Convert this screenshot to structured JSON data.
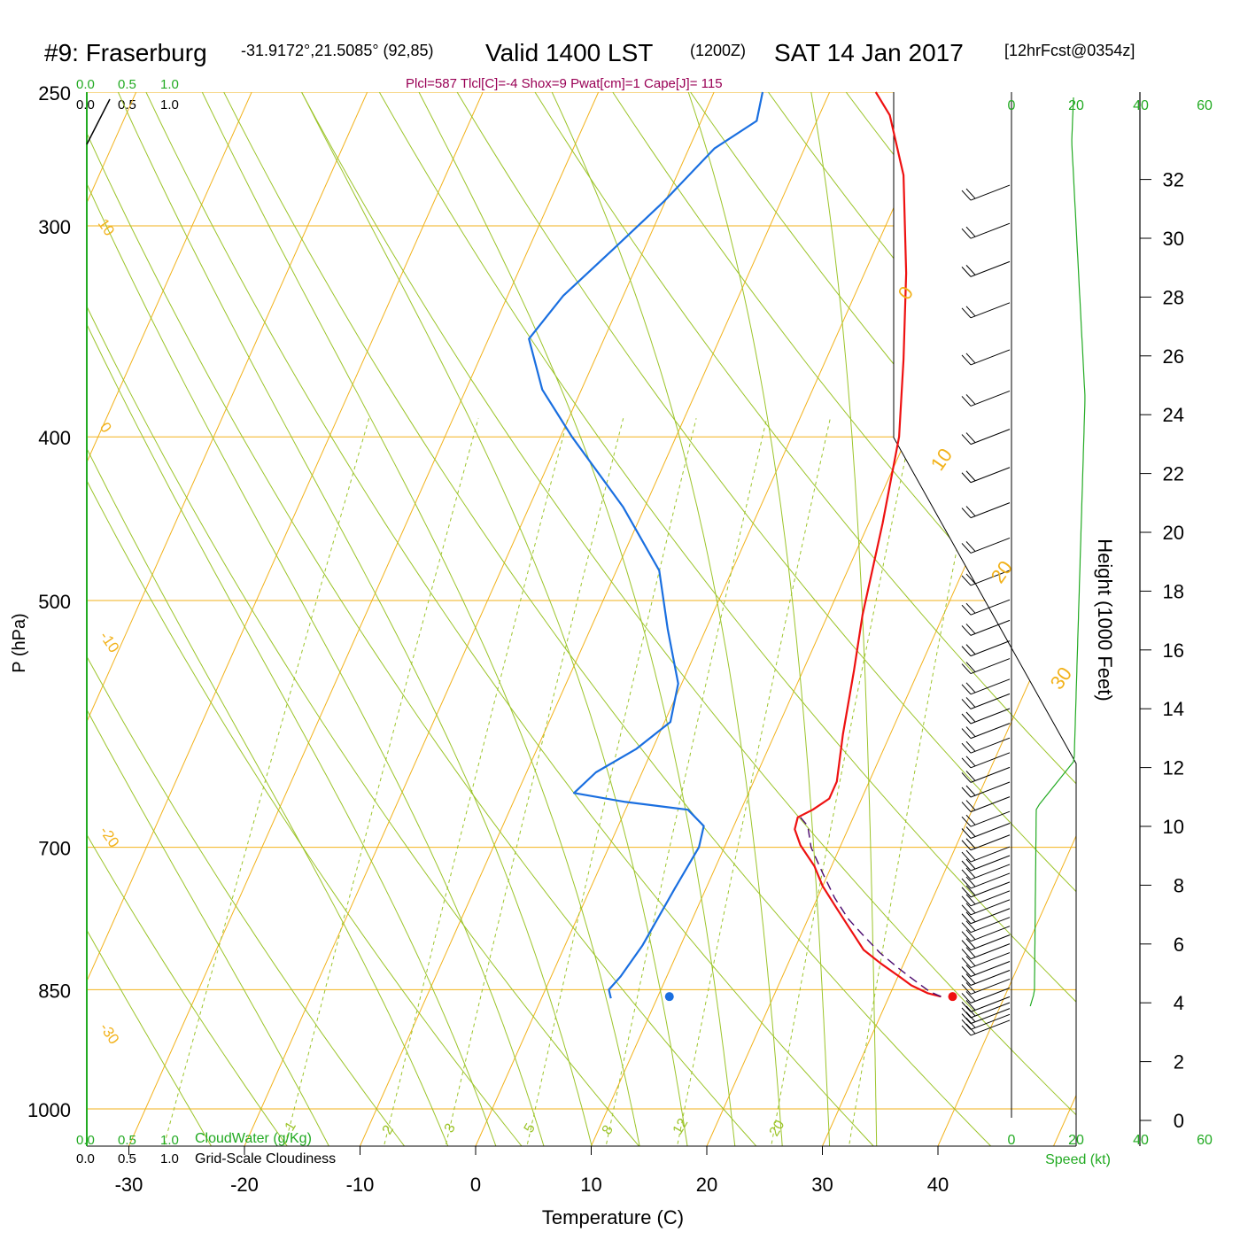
{
  "header": {
    "station": "#9: Fraserburg",
    "coords": "-31.9172°,21.5085° (92,85)",
    "valid": "Valid 1400 LST",
    "utc": "(1200Z)",
    "date": "SAT 14 Jan 2017",
    "forecast": "[12hrFcst@0354z]",
    "indices": "Plcl=587 Tlcl[C]=-4 Shox=9 Pwat[cm]=1 Cape[J]= 115"
  },
  "scale_bars": {
    "top_green": [
      "0.0",
      "0.5",
      "1.0"
    ],
    "top_black": [
      "0.0",
      "0.5",
      "1.0"
    ],
    "bottom_green": [
      "0.0",
      "0.5",
      "1.0"
    ],
    "bottom_green_label": "CloudWater (g/Kg)",
    "bottom_black": [
      "0.0",
      "0.5",
      "1.0"
    ],
    "bottom_black_label": "Grid-Scale Cloudiness"
  },
  "colors": {
    "temperature": "#ee1111",
    "dewpoint": "#1a6fe0",
    "parcel": "#4b0a6e",
    "isotherm": "#f2b21b",
    "dry_adiabat": "#9cc42a",
    "moist_adiabat": "#9cc42a",
    "mixing_ratio": "#9cc42a",
    "speed": "#22aa22",
    "indices": "#990055"
  },
  "chart_data": {
    "type": "line",
    "title": "#9: Fraserburg -31.9172°,21.5085° (92,85) Valid 1400 LST (1200Z) SAT 14 Jan 2017 [12hrFcst@0354z]",
    "xlabel": "Temperature (C)",
    "ylabel": "P (hPa)",
    "right_label": "Height (1000 Feet)",
    "speed_label": "Speed (kt)",
    "x_ticks": [
      "-30",
      "-20",
      "-10",
      "0",
      "10",
      "20",
      "30",
      "40"
    ],
    "p_ticks": [
      250,
      300,
      400,
      500,
      700,
      850,
      1000
    ],
    "height_ticks": [
      "0",
      "2",
      "4",
      "6",
      "8",
      "10",
      "12",
      "14",
      "16",
      "18",
      "20",
      "22",
      "24",
      "26",
      "28",
      "30",
      "32"
    ],
    "speed_ticks": [
      "0",
      "20",
      "40",
      "60"
    ],
    "isotherm_labels": [
      "10",
      "0",
      "-10",
      "-20",
      "-30",
      "0",
      "10",
      "20",
      "30"
    ],
    "mixing_ratio_labels": [
      "1",
      "2",
      "3",
      "5",
      "8",
      "12",
      "20"
    ],
    "series": [
      {
        "id": "temperature",
        "points": [
          [
            34.5,
            858
          ],
          [
            33.2,
            854
          ],
          [
            31.5,
            845
          ],
          [
            30.0,
            834
          ],
          [
            28.0,
            820
          ],
          [
            26.0,
            805
          ],
          [
            23.8,
            780
          ],
          [
            22.0,
            760
          ],
          [
            20.0,
            738
          ],
          [
            18.5,
            718
          ],
          [
            16.5,
            698
          ],
          [
            15.4,
            683
          ],
          [
            15.2,
            672
          ],
          [
            16.2,
            665
          ],
          [
            17.2,
            655
          ],
          [
            17.2,
            640
          ],
          [
            15.9,
            600
          ],
          [
            14.4,
            550
          ],
          [
            13.0,
            510
          ],
          [
            11.2,
            450
          ],
          [
            9.3,
            400
          ],
          [
            6.7,
            360
          ],
          [
            3.6,
            320
          ],
          [
            -0.4,
            280
          ],
          [
            -3.9,
            258
          ],
          [
            -6.0,
            250
          ]
        ]
      },
      {
        "id": "dewpoint",
        "points": [
          [
            6.0,
            860
          ],
          [
            5.5,
            850
          ],
          [
            6.0,
            835
          ],
          [
            6.7,
            800
          ],
          [
            7.3,
            740
          ],
          [
            7.8,
            700
          ],
          [
            7.4,
            680
          ],
          [
            5.4,
            665
          ],
          [
            -0.3,
            658
          ],
          [
            -5.1,
            650
          ],
          [
            -4.0,
            632
          ],
          [
            -1.4,
            612
          ],
          [
            0.5,
            590
          ],
          [
            -0.3,
            560
          ],
          [
            -3.3,
            520
          ],
          [
            -6.3,
            480
          ],
          [
            -11.9,
            440
          ],
          [
            -19.0,
            400
          ],
          [
            -23.4,
            375
          ],
          [
            -26.5,
            350
          ],
          [
            -25.2,
            330
          ],
          [
            -22.7,
            310
          ],
          [
            -20.1,
            290
          ],
          [
            -17.8,
            270
          ],
          [
            -15.2,
            260
          ],
          [
            -15.8,
            250
          ]
        ]
      },
      {
        "id": "parcel",
        "points": [
          [
            34.5,
            858
          ],
          [
            33.3,
            852
          ],
          [
            31.4,
            838
          ],
          [
            29.8,
            826
          ],
          [
            27.5,
            808
          ],
          [
            25.5,
            790
          ],
          [
            23.5,
            772
          ],
          [
            21.5,
            750
          ],
          [
            19.5,
            725
          ],
          [
            17.5,
            700
          ],
          [
            16.4,
            680
          ],
          [
            15.2,
            670
          ]
        ]
      }
    ],
    "surface_points": [
      {
        "id": "surface-temperature",
        "t": 35.5,
        "p": 858
      },
      {
        "id": "surface-dewpoint",
        "t": 11.0,
        "p": 858
      }
    ],
    "wind_barbs_heights_kft": [
      4.4,
      4.6,
      4.8,
      5.0,
      5.2,
      5.5,
      5.8,
      6.1,
      6.4,
      6.7,
      7.0,
      7.3,
      7.6,
      7.9,
      8.2,
      8.5,
      8.8,
      9.1,
      9.4,
      9.7,
      10.0,
      10.3,
      10.7,
      11.1,
      11.5,
      12.0,
      12.5,
      13.0,
      13.5,
      14.0,
      14.5,
      15.0,
      15.5,
      16.0,
      16.7,
      17.3,
      18.0,
      18.7,
      19.7,
      20.8,
      22.0,
      23.2,
      24.5,
      25.8,
      27.2,
      28.8,
      30.2,
      31.5,
      32.8
    ]
  }
}
